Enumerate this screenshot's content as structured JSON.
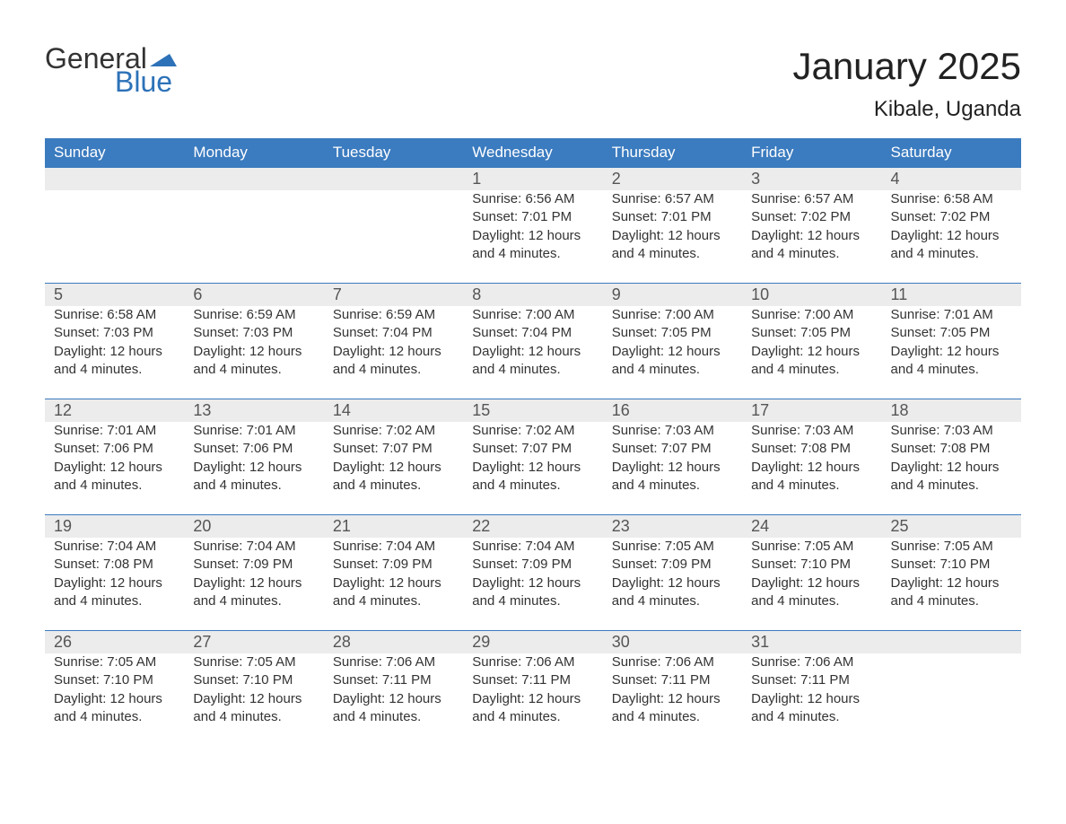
{
  "logo": {
    "word1": "General",
    "word2": "Blue"
  },
  "title": "January 2025",
  "location": "Kibale, Uganda",
  "colors": {
    "header_bg": "#3b7bbf",
    "header_text": "#ffffff",
    "daynum_bg": "#ececec",
    "daynum_border": "#3b7bbf",
    "logo_blue": "#2d72b8",
    "text": "#333333"
  },
  "weekdays": [
    "Sunday",
    "Monday",
    "Tuesday",
    "Wednesday",
    "Thursday",
    "Friday",
    "Saturday"
  ],
  "weeks": [
    [
      null,
      null,
      null,
      {
        "n": "1",
        "sunrise": "Sunrise: 6:56 AM",
        "sunset": "Sunset: 7:01 PM",
        "d1": "Daylight: 12 hours",
        "d2": "and 4 minutes."
      },
      {
        "n": "2",
        "sunrise": "Sunrise: 6:57 AM",
        "sunset": "Sunset: 7:01 PM",
        "d1": "Daylight: 12 hours",
        "d2": "and 4 minutes."
      },
      {
        "n": "3",
        "sunrise": "Sunrise: 6:57 AM",
        "sunset": "Sunset: 7:02 PM",
        "d1": "Daylight: 12 hours",
        "d2": "and 4 minutes."
      },
      {
        "n": "4",
        "sunrise": "Sunrise: 6:58 AM",
        "sunset": "Sunset: 7:02 PM",
        "d1": "Daylight: 12 hours",
        "d2": "and 4 minutes."
      }
    ],
    [
      {
        "n": "5",
        "sunrise": "Sunrise: 6:58 AM",
        "sunset": "Sunset: 7:03 PM",
        "d1": "Daylight: 12 hours",
        "d2": "and 4 minutes."
      },
      {
        "n": "6",
        "sunrise": "Sunrise: 6:59 AM",
        "sunset": "Sunset: 7:03 PM",
        "d1": "Daylight: 12 hours",
        "d2": "and 4 minutes."
      },
      {
        "n": "7",
        "sunrise": "Sunrise: 6:59 AM",
        "sunset": "Sunset: 7:04 PM",
        "d1": "Daylight: 12 hours",
        "d2": "and 4 minutes."
      },
      {
        "n": "8",
        "sunrise": "Sunrise: 7:00 AM",
        "sunset": "Sunset: 7:04 PM",
        "d1": "Daylight: 12 hours",
        "d2": "and 4 minutes."
      },
      {
        "n": "9",
        "sunrise": "Sunrise: 7:00 AM",
        "sunset": "Sunset: 7:05 PM",
        "d1": "Daylight: 12 hours",
        "d2": "and 4 minutes."
      },
      {
        "n": "10",
        "sunrise": "Sunrise: 7:00 AM",
        "sunset": "Sunset: 7:05 PM",
        "d1": "Daylight: 12 hours",
        "d2": "and 4 minutes."
      },
      {
        "n": "11",
        "sunrise": "Sunrise: 7:01 AM",
        "sunset": "Sunset: 7:05 PM",
        "d1": "Daylight: 12 hours",
        "d2": "and 4 minutes."
      }
    ],
    [
      {
        "n": "12",
        "sunrise": "Sunrise: 7:01 AM",
        "sunset": "Sunset: 7:06 PM",
        "d1": "Daylight: 12 hours",
        "d2": "and 4 minutes."
      },
      {
        "n": "13",
        "sunrise": "Sunrise: 7:01 AM",
        "sunset": "Sunset: 7:06 PM",
        "d1": "Daylight: 12 hours",
        "d2": "and 4 minutes."
      },
      {
        "n": "14",
        "sunrise": "Sunrise: 7:02 AM",
        "sunset": "Sunset: 7:07 PM",
        "d1": "Daylight: 12 hours",
        "d2": "and 4 minutes."
      },
      {
        "n": "15",
        "sunrise": "Sunrise: 7:02 AM",
        "sunset": "Sunset: 7:07 PM",
        "d1": "Daylight: 12 hours",
        "d2": "and 4 minutes."
      },
      {
        "n": "16",
        "sunrise": "Sunrise: 7:03 AM",
        "sunset": "Sunset: 7:07 PM",
        "d1": "Daylight: 12 hours",
        "d2": "and 4 minutes."
      },
      {
        "n": "17",
        "sunrise": "Sunrise: 7:03 AM",
        "sunset": "Sunset: 7:08 PM",
        "d1": "Daylight: 12 hours",
        "d2": "and 4 minutes."
      },
      {
        "n": "18",
        "sunrise": "Sunrise: 7:03 AM",
        "sunset": "Sunset: 7:08 PM",
        "d1": "Daylight: 12 hours",
        "d2": "and 4 minutes."
      }
    ],
    [
      {
        "n": "19",
        "sunrise": "Sunrise: 7:04 AM",
        "sunset": "Sunset: 7:08 PM",
        "d1": "Daylight: 12 hours",
        "d2": "and 4 minutes."
      },
      {
        "n": "20",
        "sunrise": "Sunrise: 7:04 AM",
        "sunset": "Sunset: 7:09 PM",
        "d1": "Daylight: 12 hours",
        "d2": "and 4 minutes."
      },
      {
        "n": "21",
        "sunrise": "Sunrise: 7:04 AM",
        "sunset": "Sunset: 7:09 PM",
        "d1": "Daylight: 12 hours",
        "d2": "and 4 minutes."
      },
      {
        "n": "22",
        "sunrise": "Sunrise: 7:04 AM",
        "sunset": "Sunset: 7:09 PM",
        "d1": "Daylight: 12 hours",
        "d2": "and 4 minutes."
      },
      {
        "n": "23",
        "sunrise": "Sunrise: 7:05 AM",
        "sunset": "Sunset: 7:09 PM",
        "d1": "Daylight: 12 hours",
        "d2": "and 4 minutes."
      },
      {
        "n": "24",
        "sunrise": "Sunrise: 7:05 AM",
        "sunset": "Sunset: 7:10 PM",
        "d1": "Daylight: 12 hours",
        "d2": "and 4 minutes."
      },
      {
        "n": "25",
        "sunrise": "Sunrise: 7:05 AM",
        "sunset": "Sunset: 7:10 PM",
        "d1": "Daylight: 12 hours",
        "d2": "and 4 minutes."
      }
    ],
    [
      {
        "n": "26",
        "sunrise": "Sunrise: 7:05 AM",
        "sunset": "Sunset: 7:10 PM",
        "d1": "Daylight: 12 hours",
        "d2": "and 4 minutes."
      },
      {
        "n": "27",
        "sunrise": "Sunrise: 7:05 AM",
        "sunset": "Sunset: 7:10 PM",
        "d1": "Daylight: 12 hours",
        "d2": "and 4 minutes."
      },
      {
        "n": "28",
        "sunrise": "Sunrise: 7:06 AM",
        "sunset": "Sunset: 7:11 PM",
        "d1": "Daylight: 12 hours",
        "d2": "and 4 minutes."
      },
      {
        "n": "29",
        "sunrise": "Sunrise: 7:06 AM",
        "sunset": "Sunset: 7:11 PM",
        "d1": "Daylight: 12 hours",
        "d2": "and 4 minutes."
      },
      {
        "n": "30",
        "sunrise": "Sunrise: 7:06 AM",
        "sunset": "Sunset: 7:11 PM",
        "d1": "Daylight: 12 hours",
        "d2": "and 4 minutes."
      },
      {
        "n": "31",
        "sunrise": "Sunrise: 7:06 AM",
        "sunset": "Sunset: 7:11 PM",
        "d1": "Daylight: 12 hours",
        "d2": "and 4 minutes."
      },
      null
    ]
  ]
}
